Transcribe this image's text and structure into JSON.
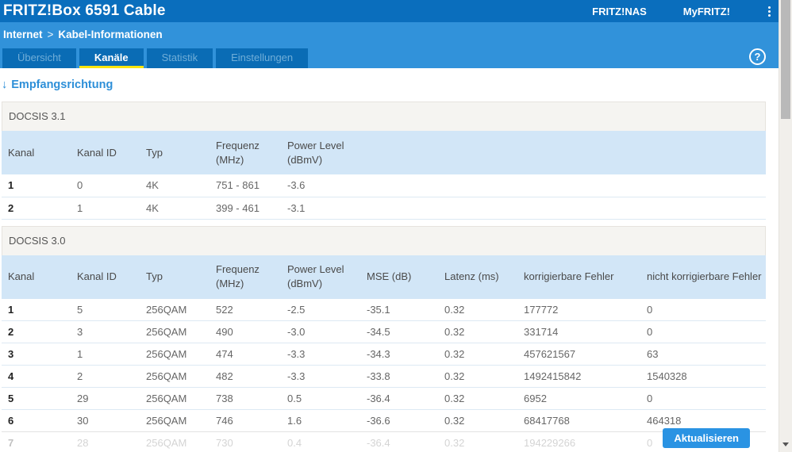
{
  "header": {
    "title": "FRITZ!Box 6591 Cable",
    "nav_links": [
      "FRITZ!NAS",
      "MyFRITZ!"
    ]
  },
  "breadcrumb": {
    "items": [
      "Internet",
      "Kabel-Informationen"
    ],
    "separator": ">"
  },
  "help_icon": "?",
  "tabs": [
    {
      "label": "Übersicht",
      "active": false
    },
    {
      "label": "Kanäle",
      "active": true
    },
    {
      "label": "Statistik",
      "active": false
    },
    {
      "label": "Einstellungen",
      "active": false
    }
  ],
  "heading": {
    "arrow": "↓",
    "label": "Empfangsrichtung"
  },
  "docsis31": {
    "title": "DOCSIS 3.1",
    "columns": [
      {
        "line1": "Kanal",
        "line2": ""
      },
      {
        "line1": "Kanal ID",
        "line2": ""
      },
      {
        "line1": "Typ",
        "line2": ""
      },
      {
        "line1": "Frequenz (MHz)",
        "line2": ""
      },
      {
        "line1": "Power Level",
        "line2": "(dBmV)"
      }
    ],
    "rows": [
      [
        "1",
        "0",
        "4K",
        "751 - 861",
        "-3.6"
      ],
      [
        "2",
        "1",
        "4K",
        "399 - 461",
        "-3.1"
      ]
    ]
  },
  "docsis30": {
    "title": "DOCSIS 3.0",
    "columns": [
      {
        "line1": "Kanal",
        "line2": ""
      },
      {
        "line1": "Kanal ID",
        "line2": ""
      },
      {
        "line1": "Typ",
        "line2": ""
      },
      {
        "line1": "Frequenz (MHz)",
        "line2": ""
      },
      {
        "line1": "Power Level",
        "line2": "(dBmV)"
      },
      {
        "line1": "MSE (dB)",
        "line2": ""
      },
      {
        "line1": "Latenz (ms)",
        "line2": ""
      },
      {
        "line1": "korrigierbare Fehler",
        "line2": ""
      },
      {
        "line1": "nicht korrigierbare Fehler",
        "line2": ""
      }
    ],
    "rows": [
      [
        "1",
        "5",
        "256QAM",
        "522",
        "-2.5",
        "-35.1",
        "0.32",
        "177772",
        "0"
      ],
      [
        "2",
        "3",
        "256QAM",
        "490",
        "-3.0",
        "-34.5",
        "0.32",
        "331714",
        "0"
      ],
      [
        "3",
        "1",
        "256QAM",
        "474",
        "-3.3",
        "-34.3",
        "0.32",
        "457621567",
        "63"
      ],
      [
        "4",
        "2",
        "256QAM",
        "482",
        "-3.3",
        "-33.8",
        "0.32",
        "1492415842",
        "1540328"
      ],
      [
        "5",
        "29",
        "256QAM",
        "738",
        "0.5",
        "-36.4",
        "0.32",
        "6952",
        "0"
      ],
      [
        "6",
        "30",
        "256QAM",
        "746",
        "1.6",
        "-36.6",
        "0.32",
        "68417768",
        "464318"
      ],
      [
        "7",
        "28",
        "256QAM",
        "730",
        "0.4",
        "-36.4",
        "0.32",
        "194229266",
        "0"
      ]
    ]
  },
  "button": {
    "label": "Aktualisieren"
  },
  "colors": {
    "topbar": "#0a6ebd",
    "subheader": "#3192da",
    "tab_bg": "#0a6cb5",
    "tab_underline": "#fbe50d",
    "table_header_bg": "#d2e6f7",
    "section_bar_bg": "#f5f4f1",
    "button_bg": "#2a93e3",
    "heading_text": "#2d8fd8"
  }
}
